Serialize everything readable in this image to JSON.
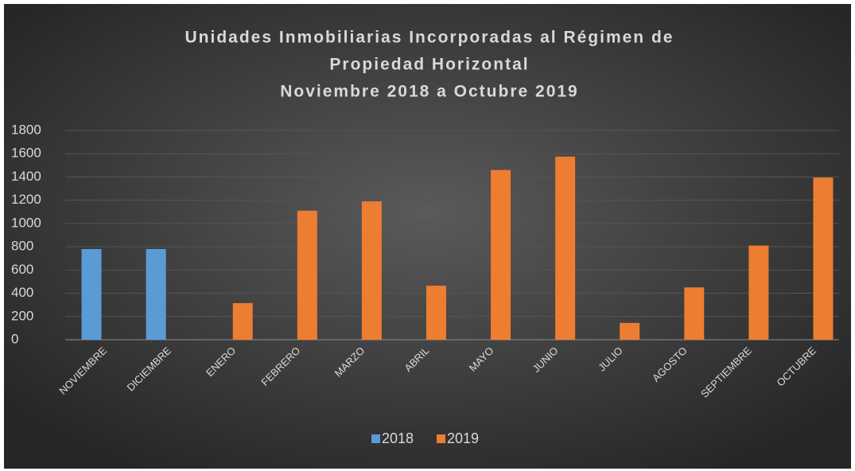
{
  "chart_data": {
    "type": "bar",
    "title": [
      "Unidades Inmobiliarias Incorporadas al Régimen de",
      "Propiedad Horizontal",
      "Noviembre 2018 a Octubre 2019"
    ],
    "categories": [
      "NOVIEMBRE",
      "DICIEMBRE",
      "ENERO",
      "FEBRERO",
      "MARZO",
      "ABRIL",
      "MAYO",
      "JUNIO",
      "JULIO",
      "AGOSTO",
      "SEPTIEMBRE",
      "OCTUBRE"
    ],
    "series": [
      {
        "name": "2018",
        "color": "#5b9bd5",
        "values": [
          780,
          780,
          null,
          null,
          null,
          null,
          null,
          null,
          null,
          null,
          null,
          null
        ]
      },
      {
        "name": "2019",
        "color": "#ed7d31",
        "values": [
          null,
          null,
          315,
          1110,
          1190,
          465,
          1460,
          1575,
          145,
          450,
          810,
          1395
        ]
      }
    ],
    "ylim": [
      0,
      1800
    ],
    "yticks": [
      0,
      200,
      400,
      600,
      800,
      1000,
      1200,
      1400,
      1600,
      1800
    ],
    "grid": true,
    "legend": "bottom"
  }
}
